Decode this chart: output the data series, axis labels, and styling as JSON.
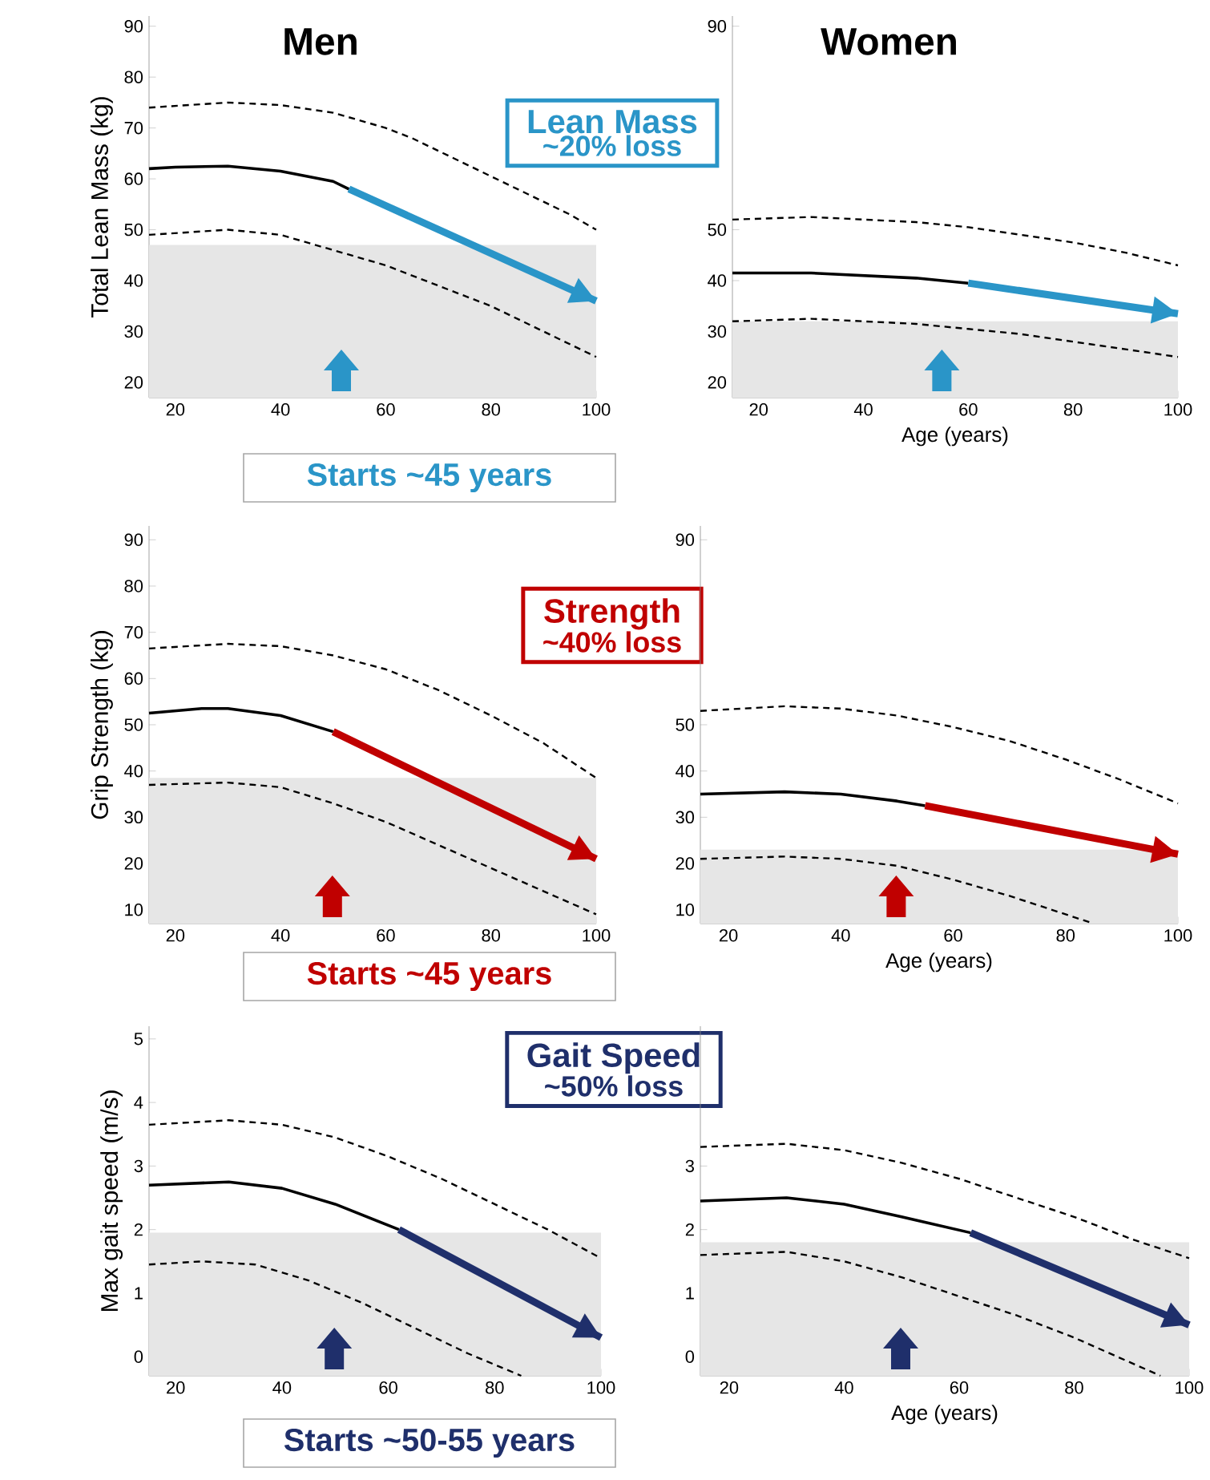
{
  "chart_data": [
    {
      "type": "line",
      "title": "Men",
      "ylabel": "Total Lean Mass (kg)",
      "xlim": [
        15,
        100
      ],
      "xticks": [
        20,
        40,
        60,
        80,
        100
      ],
      "ylim": [
        17,
        92
      ],
      "yticks": [
        20,
        30,
        40,
        50,
        60,
        70,
        80,
        90
      ],
      "bands": [
        {
          "axis": "y",
          "from": 17,
          "to": 47,
          "color": "#e6e6e6"
        }
      ],
      "series": [
        {
          "color": "#000000",
          "line_style": "dashed",
          "x": [
            15,
            30,
            40,
            50,
            60,
            65,
            80,
            90,
            95,
            100
          ],
          "values": [
            74,
            75,
            74.5,
            73,
            70,
            68,
            null,
            null,
            53,
            50
          ]
        },
        {
          "color": "#000000",
          "line_style": "solid",
          "x": [
            15,
            20,
            30,
            40,
            50,
            53
          ],
          "values": [
            62,
            62.3,
            62.5,
            61.5,
            59.5,
            58
          ]
        },
        {
          "color": "#000000",
          "line_style": "dashed",
          "x": [
            15,
            30,
            40,
            50,
            60,
            70,
            80,
            90,
            100
          ],
          "values": [
            49,
            50,
            49,
            46,
            43,
            39,
            35,
            30,
            25
          ]
        },
        {
          "color": "#2a95c8",
          "line_style": "solid",
          "x": [
            53,
            100
          ],
          "values": [
            58,
            36
          ]
        }
      ],
      "annotations": [
        "Lean Mass",
        "~20% loss",
        "Starts ~45 years"
      ]
    },
    {
      "type": "line",
      "title": "Women",
      "xlabel": "Age (years)",
      "xlim": [
        15,
        100
      ],
      "xticks": [
        20,
        40,
        60,
        80,
        100
      ],
      "ylim": [
        17,
        92
      ],
      "yticks": [
        20,
        30,
        40,
        50,
        90
      ],
      "bands": [
        {
          "axis": "y",
          "from": 17,
          "to": 32,
          "color": "#e6e6e6"
        }
      ],
      "series": [
        {
          "color": "#000000",
          "line_style": "dashed",
          "x": [
            15,
            30,
            40,
            50,
            60,
            70,
            80,
            90,
            100
          ],
          "values": [
            52,
            52.5,
            52,
            51.5,
            50.5,
            49,
            47.5,
            45.5,
            43
          ]
        },
        {
          "color": "#000000",
          "line_style": "solid",
          "x": [
            15,
            30,
            40,
            50,
            60
          ],
          "values": [
            41.5,
            41.5,
            41,
            40.5,
            39.5
          ]
        },
        {
          "color": "#000000",
          "line_style": "dashed",
          "x": [
            15,
            30,
            40,
            50,
            60,
            70,
            80,
            90,
            100
          ],
          "values": [
            32,
            32.5,
            32,
            31.5,
            30.5,
            29.5,
            28,
            26.5,
            25
          ]
        },
        {
          "color": "#2a95c8",
          "line_style": "solid",
          "x": [
            60,
            100
          ],
          "values": [
            39.5,
            33.5
          ]
        }
      ]
    },
    {
      "type": "line",
      "ylabel": "Grip Strength (kg)",
      "xlim": [
        15,
        100
      ],
      "xticks": [
        20,
        40,
        60,
        80,
        100
      ],
      "ylim": [
        7,
        93
      ],
      "yticks": [
        10,
        20,
        30,
        40,
        50,
        60,
        70,
        80,
        90
      ],
      "bands": [
        {
          "axis": "y",
          "from": 7,
          "to": 38.5,
          "color": "#e6e6e6"
        }
      ],
      "series": [
        {
          "color": "#000000",
          "line_style": "dashed",
          "x": [
            15,
            30,
            40,
            50,
            60,
            70,
            80,
            90,
            100
          ],
          "values": [
            66.5,
            67.5,
            67,
            65,
            62,
            57.5,
            52,
            46,
            38.5
          ]
        },
        {
          "color": "#000000",
          "line_style": "solid",
          "x": [
            15,
            25,
            30,
            40,
            50
          ],
          "values": [
            52.5,
            53.5,
            53.5,
            52,
            48.5
          ]
        },
        {
          "color": "#000000",
          "line_style": "dashed",
          "x": [
            15,
            30,
            40,
            50,
            60,
            70,
            80,
            90,
            100
          ],
          "values": [
            37,
            37.5,
            36.5,
            33,
            29,
            24,
            19,
            14,
            9
          ]
        },
        {
          "color": "#c00000",
          "line_style": "solid",
          "x": [
            50,
            100
          ],
          "values": [
            48.5,
            21
          ]
        }
      ],
      "annotations": [
        "Strength",
        "~40% loss",
        "Starts ~45 years"
      ]
    },
    {
      "type": "line",
      "xlabel": "Age (years)",
      "xlim": [
        15,
        100
      ],
      "xticks": [
        20,
        40,
        60,
        80,
        100
      ],
      "ylim": [
        7,
        93
      ],
      "yticks": [
        10,
        20,
        30,
        40,
        50,
        90
      ],
      "bands": [
        {
          "axis": "y",
          "from": 7,
          "to": 23,
          "color": "#e6e6e6"
        }
      ],
      "series": [
        {
          "color": "#000000",
          "line_style": "dashed",
          "x": [
            15,
            30,
            40,
            50,
            60,
            70,
            80,
            90,
            100
          ],
          "values": [
            53,
            54,
            53.5,
            52,
            49.5,
            46.5,
            42.5,
            38,
            33
          ]
        },
        {
          "color": "#000000",
          "line_style": "solid",
          "x": [
            15,
            30,
            40,
            50,
            55
          ],
          "values": [
            35,
            35.5,
            35,
            33.5,
            32.5
          ]
        },
        {
          "color": "#000000",
          "line_style": "dashed",
          "x": [
            15,
            30,
            40,
            50,
            60,
            70,
            80,
            85
          ],
          "values": [
            21,
            21.5,
            21,
            19.5,
            16.5,
            13,
            9,
            7
          ]
        },
        {
          "color": "#c00000",
          "line_style": "solid",
          "x": [
            55,
            100
          ],
          "values": [
            32.5,
            22
          ]
        }
      ]
    },
    {
      "type": "line",
      "ylabel": "Max gait speed (m/s)",
      "xlim": [
        15,
        100
      ],
      "xticks": [
        20,
        40,
        60,
        80,
        100
      ],
      "ylim": [
        -0.3,
        5.2
      ],
      "yticks": [
        0,
        1,
        2,
        3,
        4,
        5
      ],
      "bands": [
        {
          "axis": "y",
          "from": -0.3,
          "to": 1.95,
          "color": "#e6e6e6"
        }
      ],
      "series": [
        {
          "color": "#000000",
          "line_style": "dashed",
          "x": [
            15,
            30,
            40,
            50,
            60,
            70,
            80,
            90,
            100
          ],
          "values": [
            3.65,
            3.72,
            3.65,
            3.45,
            3.15,
            2.8,
            2.4,
            2.0,
            1.55
          ]
        },
        {
          "color": "#000000",
          "line_style": "solid",
          "x": [
            15,
            30,
            40,
            50,
            62
          ],
          "values": [
            2.7,
            2.75,
            2.65,
            2.4,
            2.0
          ]
        },
        {
          "color": "#000000",
          "line_style": "dashed",
          "x": [
            15,
            25,
            35,
            45,
            55,
            65,
            75,
            85
          ],
          "values": [
            1.45,
            1.5,
            1.45,
            1.2,
            0.85,
            0.45,
            0.05,
            -0.3
          ]
        },
        {
          "color": "#1f2f6b",
          "line_style": "solid",
          "x": [
            62,
            100
          ],
          "values": [
            2.0,
            0.3
          ]
        }
      ],
      "annotations": [
        "Gait Speed",
        "~50% loss",
        "Starts ~50-55 years"
      ]
    },
    {
      "type": "line",
      "xlabel": "Age (years)",
      "xlim": [
        15,
        100
      ],
      "xticks": [
        20,
        40,
        60,
        80,
        100
      ],
      "ylim": [
        -0.3,
        5.2
      ],
      "yticks": [
        0,
        1,
        2,
        3
      ],
      "bands": [
        {
          "axis": "y",
          "from": -0.3,
          "to": 1.8,
          "color": "#e6e6e6"
        }
      ],
      "series": [
        {
          "color": "#000000",
          "line_style": "dashed",
          "x": [
            15,
            30,
            40,
            50,
            60,
            70,
            80,
            90,
            100
          ],
          "values": [
            3.3,
            3.35,
            3.25,
            3.05,
            2.8,
            2.5,
            2.2,
            1.85,
            1.55
          ]
        },
        {
          "color": "#000000",
          "line_style": "solid",
          "x": [
            15,
            30,
            40,
            50,
            62
          ],
          "values": [
            2.45,
            2.5,
            2.4,
            2.2,
            1.95
          ]
        },
        {
          "color": "#000000",
          "line_style": "dashed",
          "x": [
            15,
            30,
            40,
            50,
            60,
            70,
            80,
            90,
            95
          ],
          "values": [
            1.6,
            1.65,
            1.5,
            1.25,
            0.95,
            0.65,
            0.3,
            -0.1,
            -0.3
          ]
        },
        {
          "color": "#1f2f6b",
          "line_style": "solid",
          "x": [
            62,
            100
          ],
          "values": [
            1.95,
            0.5
          ]
        }
      ]
    }
  ]
}
